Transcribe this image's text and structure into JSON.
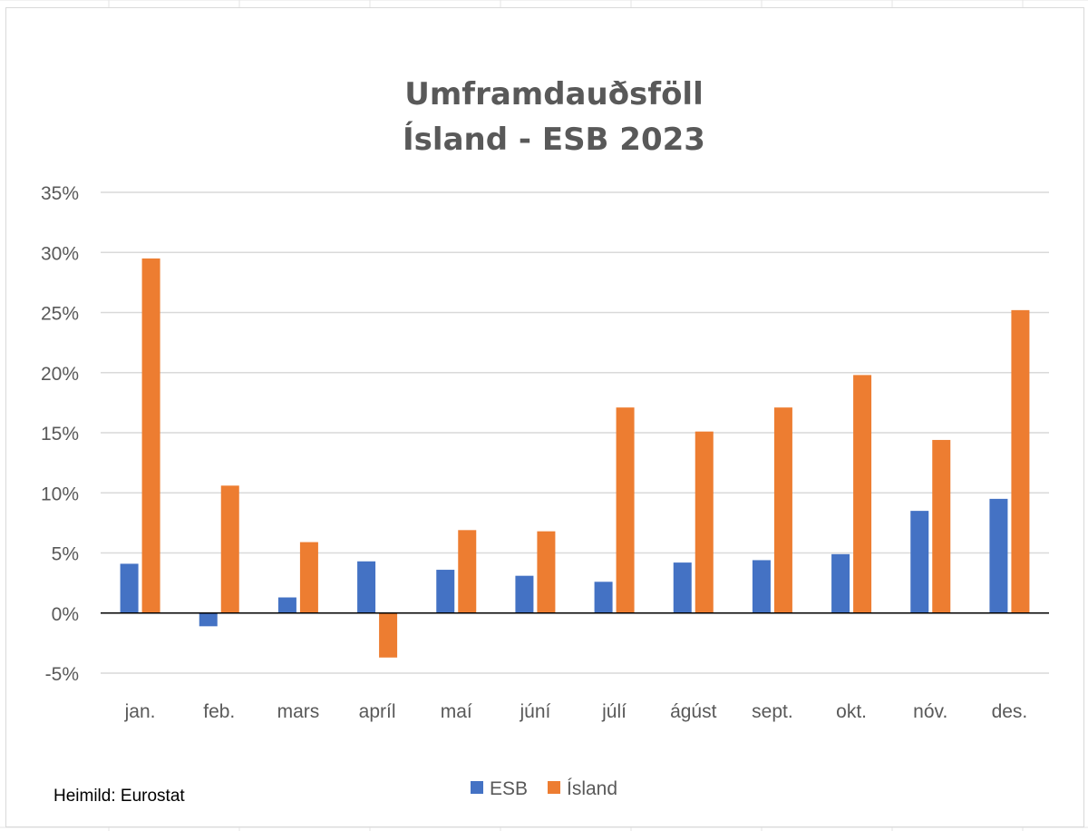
{
  "colors": {
    "esb": "#4472C4",
    "island": "#ED7D31",
    "gridline": "#d9d9d9",
    "axis": "#000000",
    "text": "#595959"
  },
  "source": "Heimild: Eurostat",
  "chart_data": {
    "type": "bar",
    "title": [
      "Umframdauðsföll",
      "Ísland - ESB 2023"
    ],
    "xlabel": "",
    "ylabel": "",
    "categories": [
      "jan.",
      "feb.",
      "mars",
      "apríl",
      "maí",
      "júní",
      "júlí",
      "ágúst",
      "sept.",
      "okt.",
      "nóv.",
      "des."
    ],
    "series": [
      {
        "name": "ESB",
        "color": "#4472C4",
        "values": [
          4.1,
          -1.1,
          1.3,
          4.3,
          3.6,
          3.1,
          2.6,
          4.2,
          4.4,
          4.9,
          8.5,
          9.5
        ]
      },
      {
        "name": "Ísland",
        "color": "#ED7D31",
        "values": [
          29.5,
          10.6,
          5.9,
          -3.7,
          6.9,
          6.8,
          17.1,
          15.1,
          17.1,
          19.8,
          14.4,
          25.2
        ]
      }
    ],
    "ylim": [
      -5,
      35
    ],
    "yticks": [
      -5,
      0,
      5,
      10,
      15,
      20,
      25,
      30,
      35
    ],
    "ytick_labels": [
      "-5%",
      "0%",
      "5%",
      "10%",
      "15%",
      "20%",
      "25%",
      "30%",
      "35%"
    ],
    "grid": true,
    "legend_position": "bottom"
  }
}
